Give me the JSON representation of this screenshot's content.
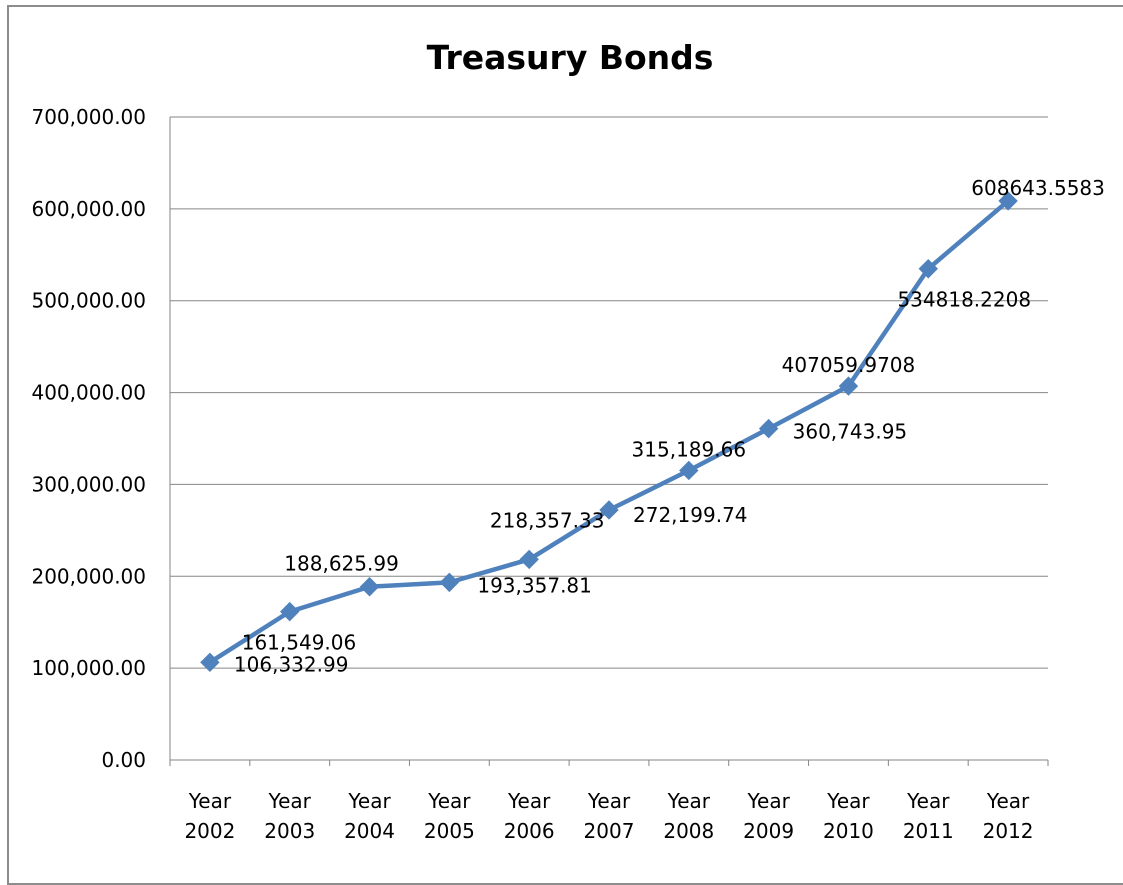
{
  "chart_data": {
    "type": "line",
    "title": "Treasury Bonds",
    "xlabel": "",
    "ylabel": "",
    "categories": [
      [
        "Year",
        "2002"
      ],
      [
        "Year",
        "2003"
      ],
      [
        "Year",
        "2004"
      ],
      [
        "Year",
        "2005"
      ],
      [
        "Year",
        "2006"
      ],
      [
        "Year",
        "2007"
      ],
      [
        "Year",
        "2008"
      ],
      [
        "Year",
        "2009"
      ],
      [
        "Year",
        "2010"
      ],
      [
        "Year",
        "2011"
      ],
      [
        "Year",
        "2012"
      ]
    ],
    "series": [
      {
        "values": [
          106332.99,
          161549.06,
          188625.99,
          193357.81,
          218357.33,
          272199.74,
          315189.66,
          360743.95,
          407059.9708,
          534818.2208,
          608643.5583
        ],
        "data_labels": [
          "106,332.99",
          "161,549.06",
          "188,625.99",
          "193,357.81",
          "218,357.33",
          "272,199.74",
          "315,189.66",
          "360,743.95",
          "407059.9708",
          "534818.2208",
          "608643.5583"
        ],
        "color": "#4f81bd",
        "marker": "diamond"
      }
    ],
    "y_ticks": [
      "0.00",
      "100,000.00",
      "200,000.00",
      "300,000.00",
      "400,000.00",
      "500,000.00",
      "600,000.00",
      "700,000.00"
    ],
    "ylim": [
      0,
      700000
    ],
    "grid": true,
    "legend": "none",
    "gridline_color": "#868686"
  }
}
